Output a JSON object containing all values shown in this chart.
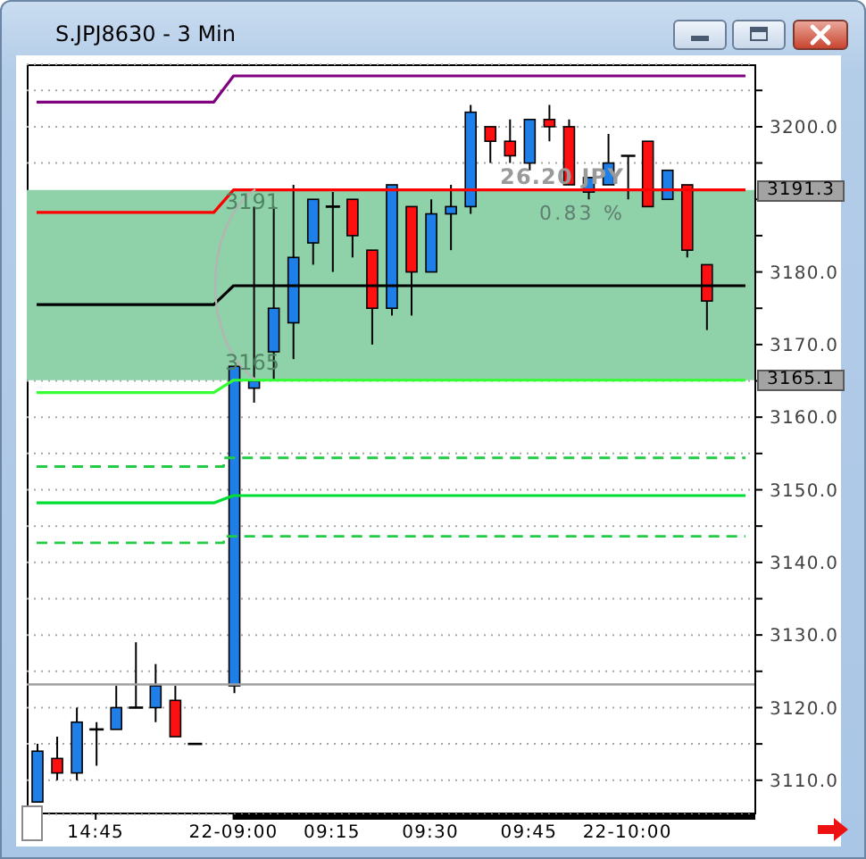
{
  "chart_data": {
    "type": "candlestick",
    "title": "S.JPJ8630 - 3 Min",
    "categories": [
      null,
      null,
      null,
      "14:45",
      null,
      null,
      null,
      null,
      null,
      null,
      "22-09:00",
      null,
      null,
      null,
      null,
      "09:15",
      null,
      null,
      null,
      null,
      "09:30",
      null,
      null,
      null,
      null,
      "09:45",
      null,
      null,
      null,
      null,
      "22-10:00",
      null,
      null,
      null,
      null,
      null,
      null
    ],
    "ohlc": [
      [
        3107,
        3115,
        3107,
        3114
      ],
      [
        3113,
        3116,
        3110,
        3111
      ],
      [
        3111,
        3120,
        3110,
        3118
      ],
      [
        3117,
        3118,
        3112,
        3117
      ],
      [
        3117,
        3123,
        3117,
        3120
      ],
      [
        3120,
        3129,
        3120,
        3120
      ],
      [
        3120,
        3126,
        3118,
        3123
      ],
      [
        3121,
        3123,
        3116,
        3116
      ],
      [
        3115,
        3115,
        3115,
        3115
      ],
      null,
      [
        3123,
        3167,
        3122,
        3167
      ],
      [
        3164,
        3189,
        3162,
        3165
      ],
      [
        3169,
        3189,
        3165,
        3175
      ],
      [
        3173,
        3192,
        3168,
        3182
      ],
      [
        3184,
        3190,
        3181,
        3190
      ],
      [
        3189,
        3191,
        3180,
        3189
      ],
      [
        3190,
        3190,
        3182,
        3185
      ],
      [
        3183,
        3183,
        3170,
        3175
      ],
      [
        3175,
        3192,
        3174,
        3192
      ],
      [
        3189,
        3189,
        3174,
        3180
      ],
      [
        3180,
        3190,
        3180,
        3188
      ],
      [
        3188,
        3192,
        3183,
        3189
      ],
      [
        3189,
        3203,
        3188,
        3202
      ],
      [
        3200,
        3200,
        3195,
        3198
      ],
      [
        3198,
        3201,
        3195,
        3196
      ],
      [
        3195,
        3201,
        3194,
        3201
      ],
      [
        3201,
        3203,
        3198,
        3200
      ],
      [
        3200,
        3201,
        3192,
        3192
      ],
      [
        3191,
        3193,
        3190,
        3193
      ],
      [
        3192,
        3199,
        3192,
        3195
      ],
      [
        3196,
        3196,
        3190,
        3196
      ],
      [
        3198,
        3198,
        3189,
        3189
      ],
      [
        3190,
        3194,
        3190,
        3194
      ],
      [
        3192,
        3192,
        3182,
        3183
      ],
      [
        3181,
        3181,
        3172,
        3176
      ],
      null,
      null
    ],
    "colors": [
      "#1e7fe8",
      "#ff1010",
      "#1e7fe8",
      "#000000",
      "#1e7fe8",
      "#000000",
      "#1e7fe8",
      "#ff1010",
      "#000000",
      null,
      "#1e7fe8",
      "#1e7fe8",
      "#1e7fe8",
      "#1e7fe8",
      "#1e7fe8",
      "#000000",
      "#ff1010",
      "#ff1010",
      "#1e7fe8",
      "#ff1010",
      "#1e7fe8",
      "#1e7fe8",
      "#1e7fe8",
      "#ff1010",
      "#ff1010",
      "#1e7fe8",
      "#ff1010",
      "#ff1010",
      "#1e7fe8",
      "#1e7fe8",
      "#000000",
      "#ff1010",
      "#1e7fe8",
      "#ff1010",
      "#ff1010",
      null,
      null
    ],
    "series": [
      {
        "type": "line",
        "color": "#800080",
        "values": [
          3203.4,
          3203.4,
          3203.4,
          3203.4,
          3203.4,
          3203.4,
          3203.4,
          3203.4,
          3203.4,
          3203.4,
          3207,
          3207,
          3207,
          3207,
          3207,
          3207,
          3207,
          3207,
          3207,
          3207,
          3207,
          3207,
          3207,
          3207,
          3207,
          3207,
          3207,
          3207,
          3207,
          3207,
          3207,
          3207,
          3207,
          3207,
          3207,
          3207,
          3207
        ]
      },
      {
        "type": "line",
        "color": "#ff0000",
        "values": [
          3188.2,
          3188.2,
          3188.2,
          3188.2,
          3188.2,
          3188.2,
          3188.2,
          3188.2,
          3188.2,
          3188.2,
          3191.3,
          3191.3,
          3191.3,
          3191.3,
          3191.3,
          3191.3,
          3191.3,
          3191.3,
          3191.3,
          3191.3,
          3191.3,
          3191.3,
          3191.3,
          3191.3,
          3191.3,
          3191.3,
          3191.3,
          3191.3,
          3191.3,
          3191.3,
          3191.3,
          3191.3,
          3191.3,
          3191.3,
          3191.3,
          3191.3,
          3191.3
        ]
      },
      {
        "type": "line",
        "color": "#000000",
        "values": [
          3175.5,
          3175.5,
          3175.5,
          3175.5,
          3175.5,
          3175.5,
          3175.5,
          3175.5,
          3175.5,
          3175.5,
          3178.1,
          3178.1,
          3178.1,
          3178.1,
          3178.1,
          3178.1,
          3178.1,
          3178.1,
          3178.1,
          3178.1,
          3178.1,
          3178.1,
          3178.1,
          3178.1,
          3178.1,
          3178.1,
          3178.1,
          3178.1,
          3178.1,
          3178.1,
          3178.1,
          3178.1,
          3178.1,
          3178.1,
          3178.1,
          3178.1,
          3178.1
        ]
      },
      {
        "type": "line",
        "color": "#33ff33",
        "values": [
          3163.4,
          3163.4,
          3163.4,
          3163.4,
          3163.4,
          3163.4,
          3163.4,
          3163.4,
          3163.4,
          3163.4,
          3165.1,
          3165.1,
          3165.1,
          3165.1,
          3165.1,
          3165.1,
          3165.1,
          3165.1,
          3165.1,
          3165.1,
          3165.1,
          3165.1,
          3165.1,
          3165.1,
          3165.1,
          3165.1,
          3165.1,
          3165.1,
          3165.1,
          3165.1,
          3165.1,
          3165.1,
          3165.1,
          3165.1,
          3165.1,
          3165.1,
          3165.1
        ]
      },
      {
        "type": "step",
        "color": "#22cc44",
        "line_style": "dashed",
        "values": [
          3153.2,
          3153.2,
          3153.2,
          3153.2,
          3153.2,
          3153.2,
          3153.2,
          3153.2,
          3153.2,
          3153.2,
          3154.4,
          3154.4,
          3154.4,
          3154.4,
          3154.4,
          3154.4,
          3154.4,
          3154.4,
          3154.4,
          3154.4,
          3154.4,
          3154.4,
          3154.4,
          3154.4,
          3154.4,
          3154.4,
          3154.4,
          3154.4,
          3154.4,
          3154.4,
          3154.4,
          3154.4,
          3154.4,
          3154.4,
          3154.4,
          3154.4,
          3154.4
        ]
      },
      {
        "type": "line",
        "color": "#00dd33",
        "values": [
          3148.2,
          3148.2,
          3148.2,
          3148.2,
          3148.2,
          3148.2,
          3148.2,
          3148.2,
          3148.2,
          3148.2,
          3149.2,
          3149.2,
          3149.2,
          3149.2,
          3149.2,
          3149.2,
          3149.2,
          3149.2,
          3149.2,
          3149.2,
          3149.2,
          3149.2,
          3149.2,
          3149.2,
          3149.2,
          3149.2,
          3149.2,
          3149.2,
          3149.2,
          3149.2,
          3149.2,
          3149.2,
          3149.2,
          3149.2,
          3149.2,
          3149.2,
          3149.2
        ]
      },
      {
        "type": "step",
        "color": "#22cc44",
        "line_style": "dashed",
        "values": [
          3142.7,
          3142.7,
          3142.7,
          3142.7,
          3142.7,
          3142.7,
          3142.7,
          3142.7,
          3142.7,
          3142.7,
          3143.6,
          3143.6,
          3143.6,
          3143.6,
          3143.6,
          3143.6,
          3143.6,
          3143.6,
          3143.6,
          3143.6,
          3143.6,
          3143.6,
          3143.6,
          3143.6,
          3143.6,
          3143.6,
          3143.6,
          3143.6,
          3143.6,
          3143.6,
          3143.6,
          3143.6,
          3143.6,
          3143.6,
          3143.6,
          3143.6,
          3143.6
        ]
      }
    ],
    "ylim": [
      3105.3,
      3208.6
    ],
    "yticks": [
      {
        "value": 3110,
        "label": "3110.0"
      },
      {
        "value": 3115,
        "label": null
      },
      {
        "value": 3120,
        "label": "3120.0"
      },
      {
        "value": 3125,
        "label": null
      },
      {
        "value": 3130,
        "label": "3130.0"
      },
      {
        "value": 3135,
        "label": null
      },
      {
        "value": 3140,
        "label": "3140.0"
      },
      {
        "value": 3145,
        "label": null
      },
      {
        "value": 3150,
        "label": "3150.0"
      },
      {
        "value": 3155,
        "label": null
      },
      {
        "value": 3160,
        "label": "3160.0"
      },
      {
        "value": 3165,
        "label": null
      },
      {
        "value": 3170,
        "label": "3170.0"
      },
      {
        "value": 3175,
        "label": null
      },
      {
        "value": 3180,
        "label": "3180.0"
      },
      {
        "value": 3185,
        "label": null
      },
      {
        "value": 3190,
        "label": null
      },
      {
        "value": 3195,
        "label": null
      },
      {
        "value": 3200,
        "label": "3200.0"
      },
      {
        "value": 3205,
        "label": null
      }
    ],
    "grid": "y",
    "ref_lines": [
      {
        "axis": "y",
        "value": 3123.2,
        "color": "#a0a0a0"
      }
    ],
    "bands": [
      {
        "axis": "y",
        "from": 3165.1,
        "to": 3191.3,
        "color": "#8fd1a8"
      }
    ],
    "annotations": [
      {
        "text": "3191",
        "y": 3191.3
      },
      {
        "text": "3165",
        "y": 3165.1
      },
      "26.20 JPY",
      "0.83 %",
      "3191.3",
      "3165.1"
    ]
  }
}
